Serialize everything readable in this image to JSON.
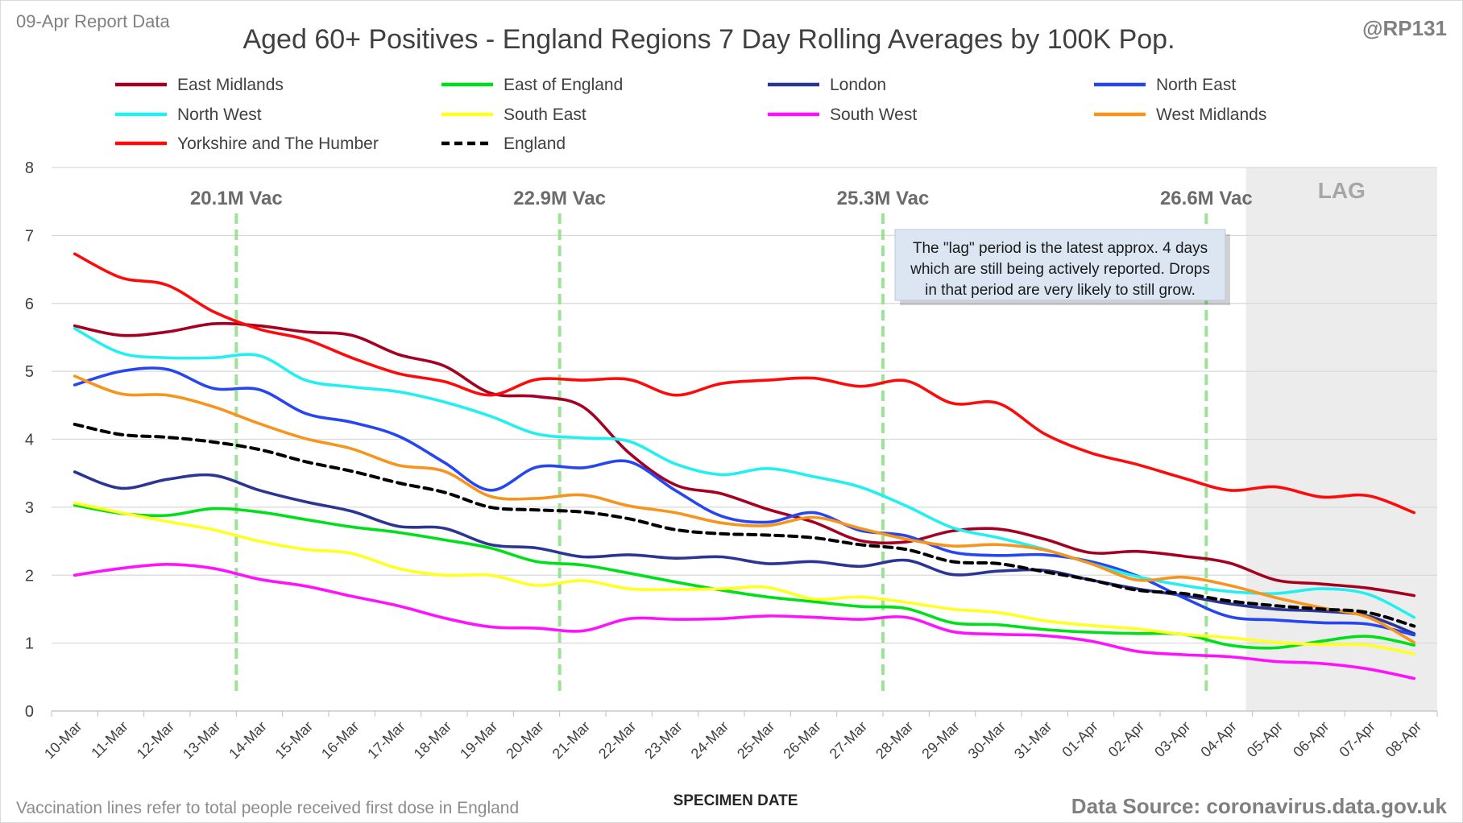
{
  "header": {
    "report_date": "09-Apr Report Data",
    "handle": "@RP131"
  },
  "footer": {
    "note": "Vaccination lines refer to total people received first dose in England",
    "source": "Data Source: coronavirus.data.gov.uk"
  },
  "annotation": {
    "lag_label": "LAG",
    "lag_note_lines": [
      "The \"lag\" period is the latest approx. 4 days",
      "which are still being actively reported.  Drops",
      "in that period are very likely to still grow."
    ]
  },
  "chart_data": {
    "type": "line",
    "title": "Aged 60+ Positives - England Regions 7 Day Rolling Averages by 100K Pop.",
    "xlabel": "SPECIMEN DATE",
    "ylabel": "",
    "ylim": [
      0,
      8
    ],
    "yticks": [
      0,
      1,
      2,
      3,
      4,
      5,
      6,
      7,
      8
    ],
    "grid": true,
    "legend_position": "top",
    "categories": [
      "10-Mar",
      "11-Mar",
      "12-Mar",
      "13-Mar",
      "14-Mar",
      "15-Mar",
      "16-Mar",
      "17-Mar",
      "18-Mar",
      "19-Mar",
      "20-Mar",
      "21-Mar",
      "22-Mar",
      "23-Mar",
      "24-Mar",
      "25-Mar",
      "26-Mar",
      "27-Mar",
      "28-Mar",
      "29-Mar",
      "30-Mar",
      "31-Mar",
      "01-Apr",
      "02-Apr",
      "03-Apr",
      "04-Apr",
      "05-Apr",
      "06-Apr",
      "07-Apr",
      "08-Apr"
    ],
    "lag_start": "05-Apr",
    "vaccination_markers": [
      {
        "label": "20.1M Vac",
        "x": "13-Mar"
      },
      {
        "label": "22.9M Vac",
        "x": "20-Mar"
      },
      {
        "label": "25.3M Vac",
        "x": "27-Mar"
      },
      {
        "label": "26.6M Vac",
        "x": "03-Apr"
      }
    ],
    "series": [
      {
        "name": "East Midlands",
        "color": "#a50021",
        "dash": false,
        "values": [
          5.67,
          5.53,
          5.58,
          5.7,
          5.67,
          5.58,
          5.53,
          5.25,
          5.08,
          4.68,
          4.63,
          4.48,
          3.8,
          3.33,
          3.2,
          2.97,
          2.78,
          2.51,
          2.49,
          2.65,
          2.68,
          2.53,
          2.33,
          2.35,
          2.28,
          2.18,
          1.93,
          1.87,
          1.81,
          1.7
        ]
      },
      {
        "name": "East of England",
        "color": "#00e01a",
        "dash": false,
        "values": [
          3.03,
          2.91,
          2.88,
          2.98,
          2.93,
          2.82,
          2.71,
          2.63,
          2.52,
          2.4,
          2.2,
          2.15,
          2.03,
          1.9,
          1.78,
          1.68,
          1.61,
          1.54,
          1.51,
          1.3,
          1.27,
          1.2,
          1.16,
          1.14,
          1.13,
          0.97,
          0.93,
          1.03,
          1.1,
          0.97
        ]
      },
      {
        "name": "London",
        "color": "#2b3593",
        "dash": false,
        "values": [
          3.52,
          3.28,
          3.41,
          3.47,
          3.25,
          3.08,
          2.94,
          2.72,
          2.69,
          2.45,
          2.4,
          2.27,
          2.3,
          2.25,
          2.27,
          2.17,
          2.2,
          2.13,
          2.22,
          2.01,
          2.06,
          2.07,
          1.93,
          1.8,
          1.7,
          1.58,
          1.5,
          1.47,
          1.4,
          1.14
        ]
      },
      {
        "name": "North East",
        "color": "#2546f0",
        "dash": false,
        "values": [
          4.8,
          5.0,
          5.03,
          4.75,
          4.73,
          4.38,
          4.25,
          4.05,
          3.66,
          3.25,
          3.59,
          3.58,
          3.67,
          3.25,
          2.87,
          2.78,
          2.92,
          2.66,
          2.58,
          2.34,
          2.29,
          2.3,
          2.2,
          1.99,
          1.67,
          1.39,
          1.34,
          1.3,
          1.28,
          1.12
        ]
      },
      {
        "name": "North West",
        "color": "#22f0f0",
        "dash": false,
        "values": [
          5.63,
          5.27,
          5.2,
          5.2,
          5.23,
          4.87,
          4.77,
          4.7,
          4.55,
          4.34,
          4.08,
          4.02,
          3.97,
          3.64,
          3.48,
          3.57,
          3.45,
          3.3,
          3.02,
          2.7,
          2.55,
          2.38,
          2.17,
          1.98,
          1.85,
          1.76,
          1.73,
          1.8,
          1.72,
          1.38
        ]
      },
      {
        "name": "South East",
        "color": "#ffff20",
        "dash": false,
        "values": [
          3.06,
          2.92,
          2.79,
          2.67,
          2.5,
          2.38,
          2.32,
          2.1,
          2.0,
          2.0,
          1.85,
          1.92,
          1.8,
          1.79,
          1.8,
          1.82,
          1.65,
          1.68,
          1.6,
          1.5,
          1.45,
          1.33,
          1.26,
          1.21,
          1.13,
          1.08,
          1.01,
          0.98,
          0.97,
          0.84
        ]
      },
      {
        "name": "South West",
        "color": "#ff11ff",
        "dash": false,
        "values": [
          2.0,
          2.1,
          2.16,
          2.1,
          1.94,
          1.84,
          1.69,
          1.55,
          1.37,
          1.24,
          1.22,
          1.18,
          1.36,
          1.35,
          1.36,
          1.4,
          1.38,
          1.35,
          1.38,
          1.17,
          1.13,
          1.11,
          1.03,
          0.88,
          0.83,
          0.8,
          0.73,
          0.7,
          0.62,
          0.48
        ]
      },
      {
        "name": "West Midlands",
        "color": "#f7941d",
        "dash": false,
        "values": [
          4.93,
          4.67,
          4.65,
          4.48,
          4.23,
          4.01,
          3.86,
          3.62,
          3.53,
          3.16,
          3.13,
          3.18,
          3.02,
          2.92,
          2.77,
          2.73,
          2.85,
          2.69,
          2.53,
          2.43,
          2.45,
          2.37,
          2.17,
          1.93,
          1.97,
          1.85,
          1.67,
          1.52,
          1.38,
          1.01
        ]
      },
      {
        "name": "Yorkshire and The Humber",
        "color": "#ff0a0a",
        "dash": false,
        "values": [
          6.73,
          6.38,
          6.27,
          5.88,
          5.62,
          5.47,
          5.2,
          4.97,
          4.85,
          4.65,
          4.88,
          4.87,
          4.88,
          4.65,
          4.82,
          4.87,
          4.9,
          4.78,
          4.86,
          4.53,
          4.53,
          4.08,
          3.8,
          3.63,
          3.43,
          3.25,
          3.3,
          3.15,
          3.17,
          2.92
        ]
      },
      {
        "name": "England",
        "color": "#000000",
        "dash": true,
        "values": [
          4.22,
          4.07,
          4.03,
          3.96,
          3.85,
          3.67,
          3.53,
          3.36,
          3.22,
          3.0,
          2.96,
          2.93,
          2.83,
          2.67,
          2.61,
          2.59,
          2.55,
          2.45,
          2.38,
          2.2,
          2.17,
          2.05,
          1.93,
          1.78,
          1.73,
          1.62,
          1.55,
          1.5,
          1.45,
          1.25
        ]
      }
    ]
  }
}
